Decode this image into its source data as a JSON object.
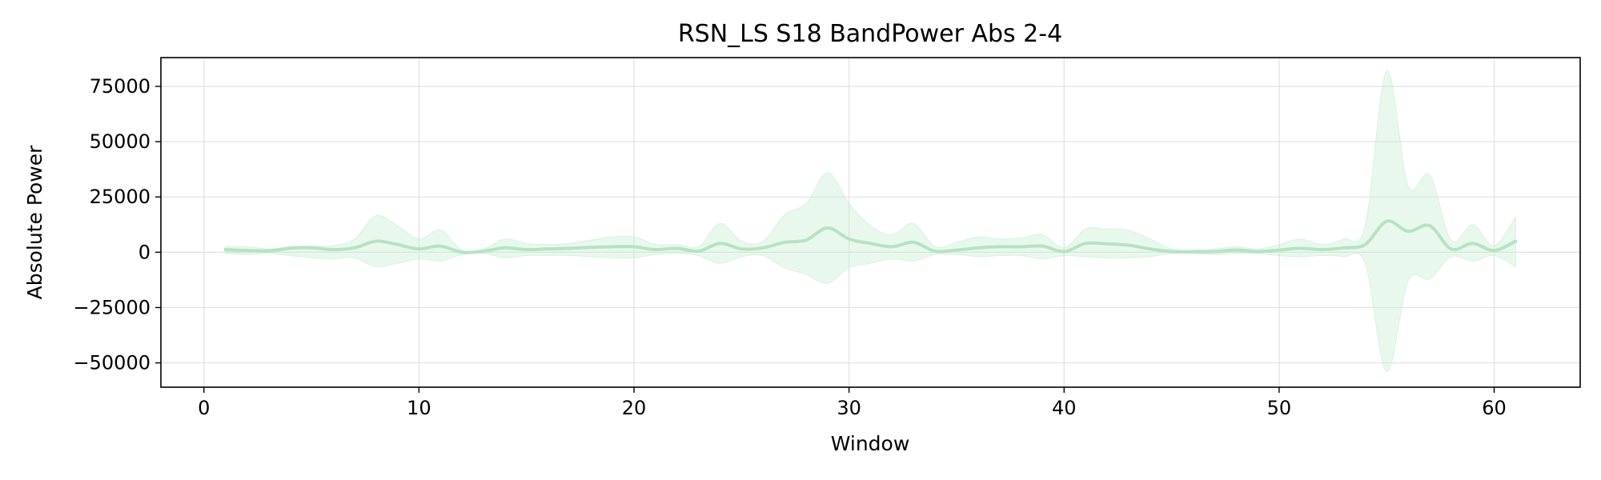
{
  "chart_data": {
    "type": "line",
    "title": "RSN_LS S18 BandPower Abs 2-4",
    "xlabel": "Window",
    "ylabel": "Absolute Power",
    "xlim": [
      -2,
      64
    ],
    "ylim": [
      -61000,
      88000
    ],
    "x_ticks": [
      0,
      10,
      20,
      30,
      40,
      50,
      60
    ],
    "x_tick_labels": [
      "0",
      "10",
      "20",
      "30",
      "40",
      "50",
      "60"
    ],
    "y_ticks": [
      -50000,
      -25000,
      0,
      25000,
      50000,
      75000
    ],
    "y_tick_labels": [
      "−50000",
      "−25000",
      "0",
      "25000",
      "50000",
      "75000"
    ],
    "grid": true,
    "legend": "none",
    "colors": {
      "line": "#b6e2c4",
      "band": "#c4ecd0"
    },
    "series": [
      {
        "x": [
          1,
          2,
          3,
          4,
          5,
          6,
          7,
          8,
          9,
          10,
          11,
          12,
          13,
          14,
          15,
          16,
          17,
          18,
          19,
          20,
          21,
          22,
          23,
          24,
          25,
          26,
          27,
          28,
          29,
          30,
          31,
          32,
          33,
          34,
          35,
          36,
          37,
          38,
          39,
          40,
          41,
          42,
          43,
          44,
          45,
          46,
          47,
          48,
          49,
          50,
          51,
          52,
          53,
          54,
          55,
          56,
          57,
          58,
          59,
          60,
          61
        ],
        "mean": [
          1200,
          800,
          600,
          1800,
          2000,
          1200,
          2000,
          5000,
          3500,
          1500,
          2800,
          0,
          500,
          2000,
          1200,
          1500,
          1800,
          2200,
          2500,
          2500,
          1200,
          1800,
          500,
          4000,
          1500,
          2000,
          4500,
          5500,
          11000,
          6000,
          4000,
          2500,
          4500,
          500,
          1000,
          2000,
          2500,
          2500,
          2800,
          300,
          4000,
          3800,
          3200,
          1500,
          300,
          200,
          300,
          1000,
          300,
          1000,
          1800,
          1200,
          2000,
          3500,
          14000,
          9500,
          12000,
          1500,
          4000,
          800,
          5000
        ],
        "upper": [
          2500,
          2500,
          1500,
          2500,
          2800,
          3000,
          6000,
          16500,
          12000,
          6000,
          10000,
          1000,
          1500,
          6000,
          4000,
          3500,
          4000,
          5500,
          7000,
          7000,
          3500,
          3500,
          2500,
          13000,
          5000,
          5000,
          17000,
          22000,
          36000,
          22000,
          12000,
          8000,
          13000,
          2500,
          4500,
          7000,
          6000,
          6500,
          8000,
          2000,
          10500,
          10500,
          10000,
          6000,
          1500,
          1000,
          1500,
          2500,
          1500,
          3500,
          6000,
          3500,
          6000,
          12000,
          82000,
          30000,
          35000,
          5500,
          12500,
          3000,
          16000
        ],
        "lower": [
          -500,
          -1000,
          -500,
          -1500,
          -2500,
          -3000,
          -2500,
          -6500,
          -5000,
          -3000,
          -4000,
          -1000,
          -500,
          -2500,
          -1500,
          -1500,
          -1500,
          -2000,
          -2500,
          -2500,
          -1000,
          -500,
          -1500,
          -5000,
          -2000,
          -1500,
          -7000,
          -10000,
          -14000,
          -7000,
          -5000,
          -3000,
          -4000,
          -1000,
          -1000,
          -2000,
          -1500,
          -1500,
          -3000,
          -1500,
          -2000,
          -2500,
          -2500,
          -2000,
          -500,
          -500,
          -1000,
          -500,
          -500,
          -1500,
          -2000,
          -1500,
          -2000,
          -5000,
          -54000,
          -13000,
          -12000,
          -2000,
          -4000,
          -1500,
          -6500
        ]
      }
    ]
  }
}
